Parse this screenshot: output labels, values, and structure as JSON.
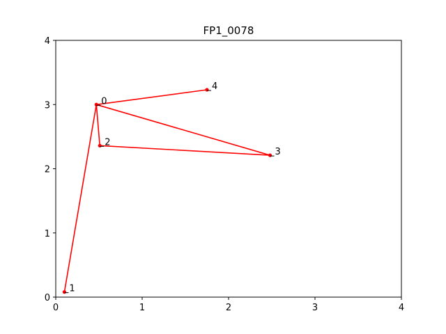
{
  "chart_data": {
    "type": "line",
    "title": "FP1_0078",
    "xlabel": "",
    "ylabel": "",
    "xlim": [
      0,
      4
    ],
    "ylim": [
      0,
      4
    ],
    "xticks": [
      0,
      1,
      2,
      3,
      4
    ],
    "yticks": [
      0,
      1,
      2,
      3,
      4
    ],
    "grid": false,
    "line_color": "#ff0000",
    "points": [
      {
        "label": "1",
        "x": 0.1,
        "y": 0.08
      },
      {
        "label": "0",
        "x": 0.47,
        "y": 3.0
      },
      {
        "label": "2",
        "x": 0.51,
        "y": 2.36
      },
      {
        "label": "3",
        "x": 2.48,
        "y": 2.21
      },
      {
        "label": "0",
        "x": 0.47,
        "y": 3.0
      },
      {
        "label": "4",
        "x": 1.75,
        "y": 3.23
      }
    ]
  }
}
